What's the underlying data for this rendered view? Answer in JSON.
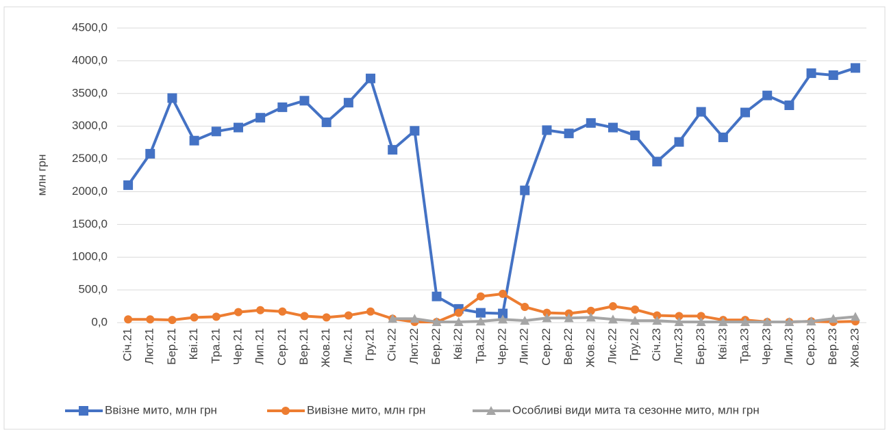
{
  "chart_data": {
    "type": "line",
    "y_label": "млн грн",
    "categories": [
      "Січ.21",
      "Лют.21",
      "Бер.21",
      "Кві.21",
      "Тра.21",
      "Чер.21",
      "Лип.21",
      "Сер.21",
      "Вер.21",
      "Жов.21",
      "Лис.21",
      "Гру.21",
      "Січ.22",
      "Лют.22",
      "Бер.22",
      "Кві.22",
      "Тра.22",
      "Чер.22",
      "Лип.22",
      "Сер.22",
      "Вер.22",
      "Жов.22",
      "Лис.22",
      "Гру.22",
      "Січ.23",
      "Лют.23",
      "Бер.23",
      "Кві.23",
      "Тра.23",
      "Чер.23",
      "Лип.23",
      "Сер.23",
      "Вер.23",
      "Жов.23"
    ],
    "series": [
      {
        "name": "Ввізне мито, млн грн",
        "color": "#4472c4",
        "marker": "square",
        "values": [
          2100,
          2580,
          3430,
          2780,
          2920,
          2980,
          3130,
          3290,
          3390,
          3060,
          3360,
          3730,
          2640,
          2930,
          400,
          210,
          150,
          140,
          2020,
          2940,
          2890,
          3050,
          2980,
          2860,
          2460,
          2760,
          3220,
          2830,
          3210,
          3470,
          3320,
          3810,
          3780,
          3890
        ]
      },
      {
        "name": "Вивізне мито, млн грн",
        "color": "#ed7d31",
        "marker": "circle",
        "values": [
          50,
          50,
          40,
          80,
          90,
          160,
          190,
          170,
          100,
          80,
          110,
          170,
          60,
          10,
          10,
          150,
          400,
          440,
          240,
          150,
          140,
          180,
          250,
          200,
          110,
          100,
          100,
          40,
          40,
          10,
          10,
          20,
          10,
          20
        ]
      },
      {
        "name": "Особливі види мита та сезонне мито, млн грн",
        "color": "#a5a5a5",
        "marker": "triangle",
        "values": [
          null,
          null,
          null,
          null,
          null,
          null,
          null,
          null,
          null,
          null,
          null,
          null,
          60,
          60,
          10,
          10,
          20,
          50,
          30,
          70,
          70,
          80,
          50,
          30,
          30,
          10,
          10,
          10,
          10,
          10,
          10,
          20,
          60,
          90
        ]
      }
    ],
    "ylim": [
      0,
      4500
    ],
    "yticks": [
      {
        "value": 0,
        "label": "0,0"
      },
      {
        "value": 500,
        "label": "500,0"
      },
      {
        "value": 1000,
        "label": "1000,0"
      },
      {
        "value": 1500,
        "label": "1500,0"
      },
      {
        "value": 2000,
        "label": "2000,0"
      },
      {
        "value": 2500,
        "label": "2500,0"
      },
      {
        "value": 3000,
        "label": "3000,0"
      },
      {
        "value": 3500,
        "label": "3500,0"
      },
      {
        "value": 4000,
        "label": "4000,0"
      },
      {
        "value": 4500,
        "label": "4500,0"
      }
    ],
    "grid": true
  }
}
